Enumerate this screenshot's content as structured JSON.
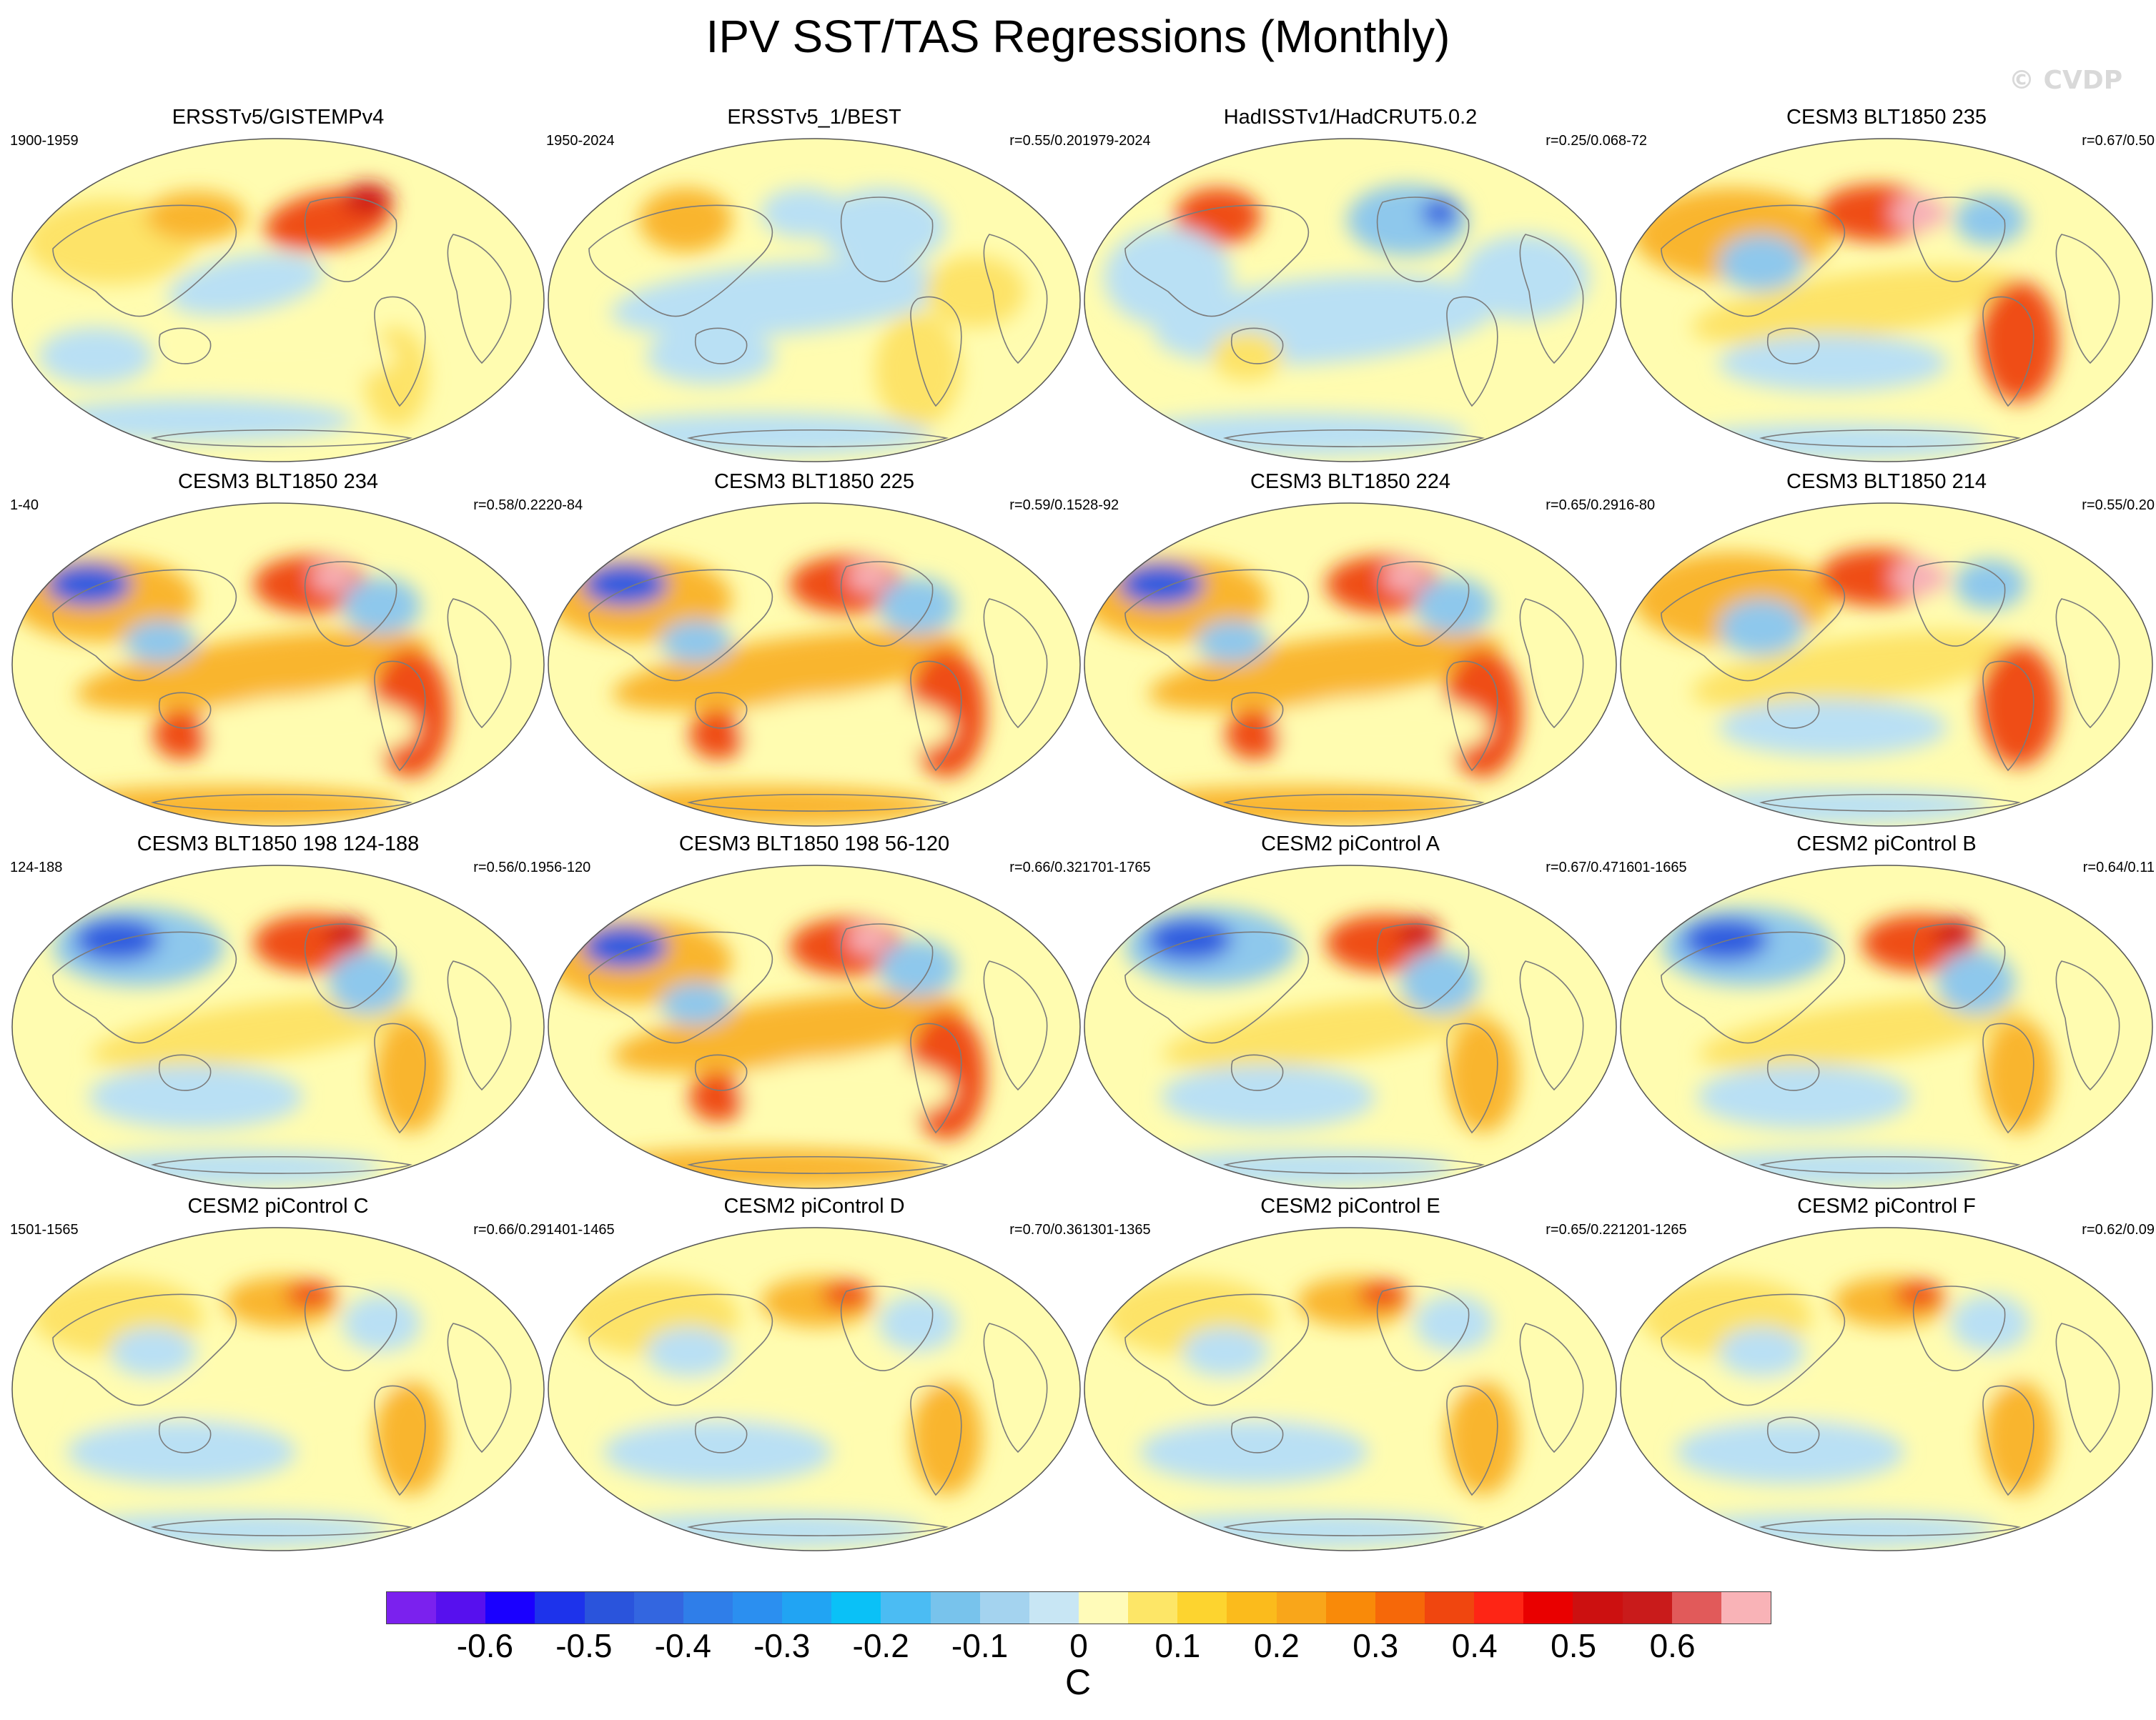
{
  "title": "IPV SST/TAS Regressions (Monthly)",
  "watermark": "© CVDP",
  "colors": {
    "cold": "#b9e0f4",
    "cool": "#8ec8ec",
    "neutral": "#fffcb0",
    "warm": "#fde368",
    "warmer": "#f9b52d",
    "hot": "#ef4d12",
    "hottest": "#ce1212",
    "extreme": "#f7b1b8",
    "deep_cold": "#2f5bdf",
    "coast": "#7b7b7b"
  },
  "panels": [
    {
      "title": "ERSSTv5/GISTEMPv4",
      "period": "1900-1959",
      "corr": "",
      "pattern": "obs1"
    },
    {
      "title": "ERSSTv5_1/BEST",
      "period": "1950-2024",
      "corr": "r=0.55/0.20",
      "pattern": "obs2"
    },
    {
      "title": "HadISSTv1/HadCRUT5.0.2",
      "period": "1979-2024",
      "corr": "r=0.25/0.06",
      "pattern": "obs3"
    },
    {
      "title": "CESM3 BLT1850 235",
      "period": "8-72",
      "corr": "r=0.67/0.50",
      "pattern": "model_warm"
    },
    {
      "title": "CESM3 BLT1850 234",
      "period": "1-40",
      "corr": "r=0.58/0.22",
      "pattern": "model_strong"
    },
    {
      "title": "CESM3 BLT1850 225",
      "period": "20-84",
      "corr": "r=0.59/0.15",
      "pattern": "model_strong"
    },
    {
      "title": "CESM3 BLT1850 224",
      "period": "28-92",
      "corr": "r=0.65/0.29",
      "pattern": "model_strong"
    },
    {
      "title": "CESM3 BLT1850 214",
      "period": "16-80",
      "corr": "r=0.55/0.20",
      "pattern": "model_warm"
    },
    {
      "title": "CESM3 BLT1850 198 124-188",
      "period": "124-188",
      "corr": "r=0.56/0.19",
      "pattern": "model_mixed"
    },
    {
      "title": "CESM3 BLT1850 198 56-120",
      "period": "56-120",
      "corr": "r=0.66/0.32",
      "pattern": "model_strong"
    },
    {
      "title": "CESM2 piControl A",
      "period": "1701-1765",
      "corr": "r=0.67/0.47",
      "pattern": "model_mixed"
    },
    {
      "title": "CESM2 piControl B",
      "period": "1601-1665",
      "corr": "r=0.64/0.11",
      "pattern": "model_mixed"
    },
    {
      "title": "CESM2 piControl C",
      "period": "1501-1565",
      "corr": "r=0.66/0.29",
      "pattern": "model_mild"
    },
    {
      "title": "CESM2 piControl D",
      "period": "1401-1465",
      "corr": "r=0.70/0.36",
      "pattern": "model_mild"
    },
    {
      "title": "CESM2 piControl E",
      "period": "1301-1365",
      "corr": "r=0.65/0.22",
      "pattern": "model_mild"
    },
    {
      "title": "CESM2 piControl F",
      "period": "1201-1265",
      "corr": "r=0.62/0.09",
      "pattern": "model_mild"
    }
  ],
  "colorbar": {
    "units": "C",
    "colors": [
      "#7b21ee",
      "#5710ee",
      "#1a00ff",
      "#1d33eb",
      "#2a54dc",
      "#3366e0",
      "#2f7ee9",
      "#2b8ff0",
      "#21a4f3",
      "#0ac1f7",
      "#4bbcf3",
      "#78c3ec",
      "#a4d3ef",
      "#c8e6f4",
      "#fffbb9",
      "#fde667",
      "#fdd42f",
      "#fbbb1c",
      "#f9a61a",
      "#f98a09",
      "#f66809",
      "#f0460f",
      "#fe2515",
      "#e90000",
      "#cc1010",
      "#c91b1b",
      "#e15a5a",
      "#f9b3b7"
    ],
    "ticks": [
      "-0.6",
      "-0.5",
      "-0.4",
      "-0.3",
      "-0.2",
      "-0.1",
      "0",
      "0.1",
      "0.2",
      "0.3",
      "0.4",
      "0.5",
      "0.6"
    ]
  }
}
